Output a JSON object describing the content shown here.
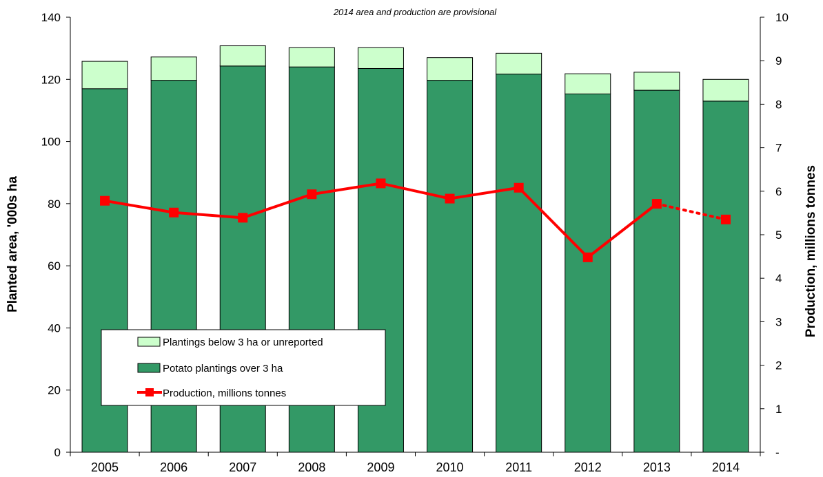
{
  "chart_data": {
    "type": "bar",
    "subtitle": "2014 area and production are provisional",
    "categories": [
      "2005",
      "2006",
      "2007",
      "2008",
      "2009",
      "2010",
      "2011",
      "2012",
      "2013",
      "2014"
    ],
    "y_left": {
      "label": "Planted area, '000s ha",
      "ylim": [
        0,
        140
      ],
      "ticks": [
        "0",
        "20",
        "40",
        "60",
        "80",
        "100",
        "120",
        "140"
      ]
    },
    "y_right": {
      "label": "Production, millions tonnes",
      "ylim": [
        0,
        10
      ],
      "ticks": [
        "-",
        "1",
        "2",
        "3",
        "4",
        "5",
        "6",
        "7",
        "8",
        "9",
        "10"
      ]
    },
    "series": [
      {
        "name": "Potato plantings over 3 ha",
        "type": "bar",
        "stack": "base",
        "axis": "left",
        "color": "#339966",
        "values": [
          117,
          119.7,
          124.3,
          124,
          123.5,
          119.7,
          121.7,
          115.3,
          116.5,
          113
        ]
      },
      {
        "name": "Plantings below 3 ha or unreported",
        "type": "bar",
        "stack": "top",
        "axis": "left",
        "color": "#ccffcc",
        "values": [
          8.8,
          7.5,
          6.5,
          6.2,
          6.7,
          7.3,
          6.7,
          6.5,
          5.8,
          7
        ]
      },
      {
        "name": "Production, millions tonnes",
        "type": "line",
        "axis": "right",
        "color": "#ff0000",
        "values": [
          5.78,
          5.51,
          5.39,
          5.93,
          6.18,
          5.83,
          6.08,
          4.48,
          5.71,
          5.35
        ],
        "provisional_from_index": 9
      }
    ],
    "legend": {
      "position": "bottom-left",
      "items": [
        "Plantings below 3 ha or unreported",
        "Potato plantings over 3 ha",
        "Production, millions tonnes"
      ]
    },
    "grid": false
  }
}
